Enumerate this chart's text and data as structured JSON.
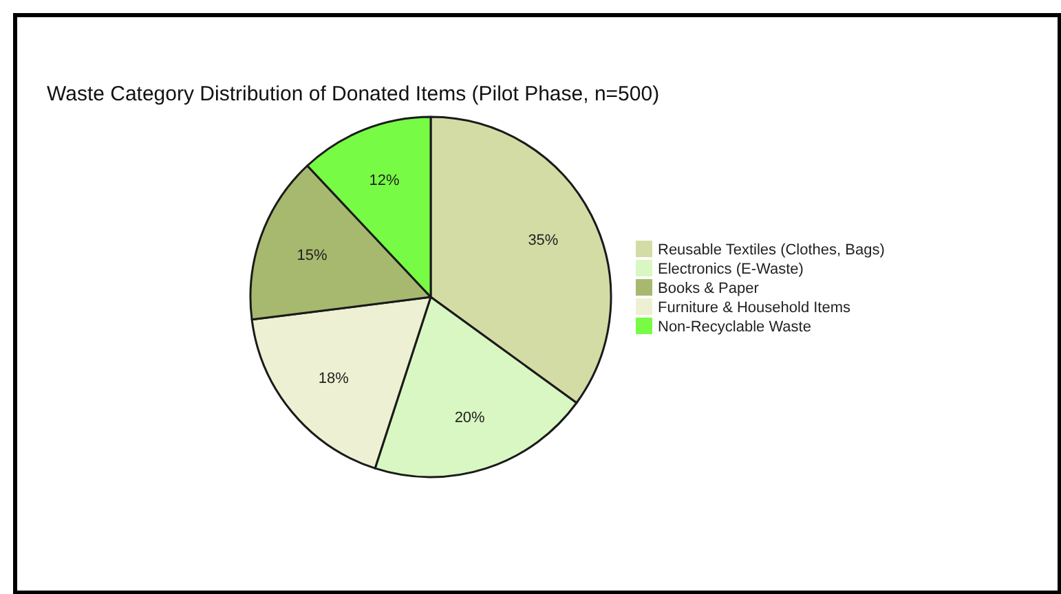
{
  "chart_data": {
    "type": "pie",
    "title": "Waste Category Distribution of Donated Items (Pilot Phase, n=500)",
    "categories": [
      "Reusable Textiles (Clothes, Bags)",
      "Electronics (E-Waste)",
      "Furniture & Household Items",
      "Books & Paper",
      "Non-Recyclable Waste"
    ],
    "values": [
      35,
      20,
      18,
      15,
      12
    ],
    "colors": [
      "#d4dca6",
      "#d8f7c2",
      "#edf0d2",
      "#a7b96e",
      "#77fb45"
    ],
    "value_labels": [
      "35%",
      "20%",
      "18%",
      "15%",
      "12%"
    ],
    "legend": "right"
  }
}
